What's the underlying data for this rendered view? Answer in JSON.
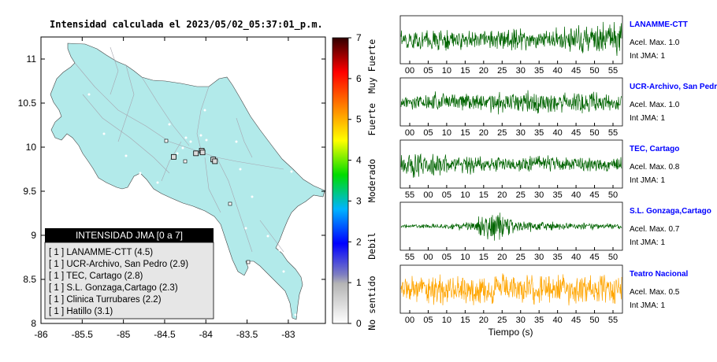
{
  "map": {
    "title": "Intensidad calculada el 2023/05/02_05:37:01_p.m.",
    "lat_ticks": [
      "8",
      "8.5",
      "9",
      "9.5",
      "10",
      "10.5",
      "11"
    ],
    "lon_ticks": [
      "-86",
      "-85.5",
      "-85",
      "-84.5",
      "-84",
      "-83.5",
      "-83"
    ],
    "legend": {
      "title": "INTENSIDAD JMA [0 a 7]",
      "entries": [
        "[ 1 ]  LANAMME-CTT (4.5)",
        "[ 1 ]  UCR-Archivo, San Pedro (2.9)",
        "[ 1 ]  TEC, Cartago (2.8)",
        "[ 1 ]  S.L. Gonzaga,Cartago (2.3)",
        "[ 1 ]  Clinica Turrubares (2.2)",
        "[ 1 ]  Hatillo (3.1)"
      ]
    },
    "colors": {
      "land": "#b2eaea",
      "sea": "#ffffff",
      "legend_header": "#000000",
      "legend_bg": "#e6e6e6"
    }
  },
  "colorbar": {
    "ticks": [
      "0",
      "1",
      "2",
      "3",
      "4",
      "5",
      "6",
      "7"
    ],
    "labels": [
      "No sentido",
      "Debil",
      "Moderado",
      "Fuerte",
      "Muy Fuerte"
    ]
  },
  "stations": [
    {
      "name": "LANAMME-CTT",
      "acc": "Acel. Max. 1.0",
      "jma": "Int JMA: 1",
      "color": "#006400",
      "ticks": [
        "00",
        "05",
        "10",
        "15",
        "20",
        "25",
        "30",
        "35",
        "40",
        "45",
        "50",
        "55"
      ]
    },
    {
      "name": "UCR-Archivo, San Pedro",
      "acc": "Acel. Max. 1.0",
      "jma": "Int JMA: 1",
      "color": "#006400",
      "ticks": [
        "00",
        "05",
        "10",
        "15",
        "20",
        "25",
        "30",
        "35",
        "40",
        "45",
        "50",
        "55"
      ]
    },
    {
      "name": "TEC, Cartago",
      "acc": "Acel. Max. 0.8",
      "jma": "Int JMA: 1",
      "color": "#006400",
      "ticks": [
        "55",
        "00",
        "05",
        "10",
        "15",
        "20",
        "25",
        "30",
        "35",
        "40",
        "45",
        "50"
      ]
    },
    {
      "name": "S.L. Gonzaga,Cartago",
      "acc": "Acel. Max. 0.7",
      "jma": "Int JMA: 1",
      "color": "#006400",
      "ticks": [
        "55",
        "00",
        "05",
        "10",
        "15",
        "20",
        "25",
        "30",
        "35",
        "40",
        "45",
        "50"
      ]
    },
    {
      "name": "Teatro Nacional",
      "acc": "Acel. Max. 0.5",
      "jma": "Int JMA: 1",
      "color": "#ffa500",
      "ticks": [
        "00",
        "05",
        "10",
        "15",
        "20",
        "25",
        "30",
        "35",
        "40",
        "45",
        "50",
        "55"
      ]
    }
  ],
  "xlabel": "Tiempo (s)",
  "chart_data": [
    {
      "type": "scatter",
      "title": "Intensidad calculada el 2023/05/02_05:37:01_p.m.",
      "xlim": [
        -86,
        -82.55
      ],
      "ylim": [
        8,
        11.25
      ],
      "grid": false,
      "legend_placement": "bottom-left",
      "stations_jma": [
        {
          "name": "LANAMME-CTT",
          "lon": -84.05,
          "lat": 9.96,
          "value": 1
        },
        {
          "name": "UCR-Archivo, San Pedro",
          "lon": -84.04,
          "lat": 9.94,
          "value": 1
        },
        {
          "name": "TEC, Cartago",
          "lon": -83.91,
          "lat": 9.86,
          "value": 1
        },
        {
          "name": "S.L. Gonzaga,Cartago",
          "lon": -83.89,
          "lat": 9.84,
          "value": 1
        },
        {
          "name": "Clinica Turrubares",
          "lon": -84.39,
          "lat": 9.89,
          "value": 1
        },
        {
          "name": "Hatillo",
          "lon": -84.12,
          "lat": 9.93,
          "value": 1
        }
      ]
    },
    {
      "type": "heatmap",
      "title": "",
      "colorbar_range": [
        0,
        7
      ],
      "colorbar_labels": [
        "No sentido",
        "Debil",
        "Moderado",
        "Fuerte",
        "Muy Fuerte"
      ]
    },
    {
      "type": "line",
      "xlabel": "Tiempo (s)",
      "series": [
        {
          "name": "LANAMME-CTT",
          "peak_accel": 1.0,
          "jma": 1,
          "envelope": [
            0.45,
            0.5,
            0.48,
            0.52,
            0.5,
            0.55,
            0.5,
            0.48,
            0.52,
            0.55,
            0.6,
            0.55,
            0.58,
            0.6,
            0.62,
            0.65,
            0.7,
            0.75,
            0.85,
            0.95
          ]
        },
        {
          "name": "UCR-Archivo, San Pedro",
          "peak_accel": 1.0,
          "jma": 1,
          "envelope": [
            0.35,
            0.45,
            0.5,
            0.55,
            0.5,
            0.6,
            0.55,
            0.5,
            0.6,
            0.55,
            0.5,
            0.55,
            0.6,
            0.55,
            0.5,
            0.55,
            0.6,
            0.5,
            0.45,
            0.4
          ]
        },
        {
          "name": "TEC, Cartago",
          "peak_accel": 0.8,
          "jma": 1,
          "envelope": [
            0.6,
            0.8,
            0.7,
            0.55,
            0.5,
            0.45,
            0.5,
            0.45,
            0.4,
            0.45,
            0.4,
            0.45,
            0.4,
            0.42,
            0.4,
            0.38,
            0.4,
            0.38,
            0.35,
            0.35
          ]
        },
        {
          "name": "S.L. Gonzaga,Cartago",
          "peak_accel": 0.7,
          "jma": 1,
          "envelope": [
            0.1,
            0.1,
            0.12,
            0.12,
            0.15,
            0.2,
            0.3,
            0.6,
            0.95,
            0.6,
            0.35,
            0.3,
            0.25,
            0.22,
            0.2,
            0.2,
            0.18,
            0.18,
            0.15,
            0.15
          ]
        },
        {
          "name": "Teatro Nacional",
          "peak_accel": 0.5,
          "jma": 1,
          "envelope": [
            0.7,
            0.8,
            0.75,
            0.8,
            0.85,
            0.8,
            0.75,
            0.8,
            0.85,
            0.8,
            0.75,
            0.8,
            0.75,
            0.8,
            0.75,
            0.8,
            0.75,
            0.78,
            0.75,
            0.8
          ]
        }
      ]
    }
  ]
}
